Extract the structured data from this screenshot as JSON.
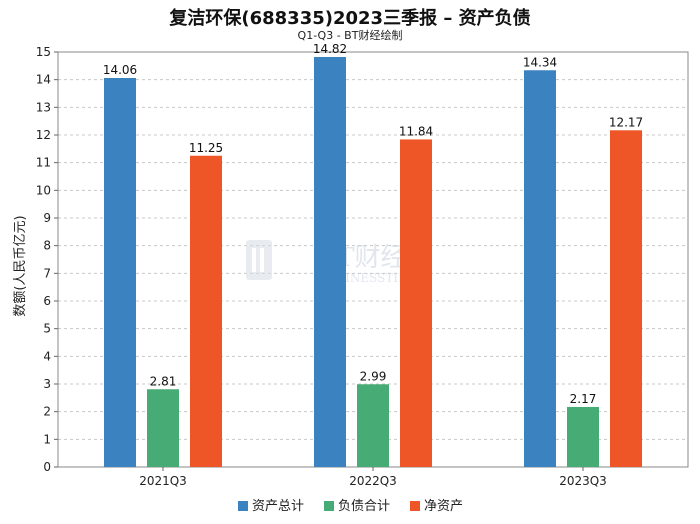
{
  "header": {
    "title": "复洁环保(688335)2023三季报 – 资产负债",
    "subtitle": "Q1-Q3 - BT财经绘制"
  },
  "watermark": {
    "cn": "BT财经",
    "en": "BUSINESSTIMES"
  },
  "chart_data": {
    "type": "bar",
    "categories": [
      "2021Q3",
      "2022Q3",
      "2023Q3"
    ],
    "series": [
      {
        "name": "资产总计",
        "color": "#3a82c0",
        "values": [
          14.06,
          14.82,
          14.34
        ]
      },
      {
        "name": "负债合计",
        "color": "#47ab75",
        "values": [
          2.81,
          2.99,
          2.17
        ]
      },
      {
        "name": "净资产",
        "color": "#ee5527",
        "values": [
          11.25,
          11.84,
          12.17
        ]
      }
    ],
    "ylabel": "数额(人民币亿元)",
    "xlabel": "",
    "ylim": [
      0,
      15
    ],
    "yticks": [
      0,
      1,
      2,
      3,
      4,
      5,
      6,
      7,
      8,
      9,
      10,
      11,
      12,
      13,
      14,
      15
    ],
    "grid": true,
    "legend": "bottom"
  }
}
